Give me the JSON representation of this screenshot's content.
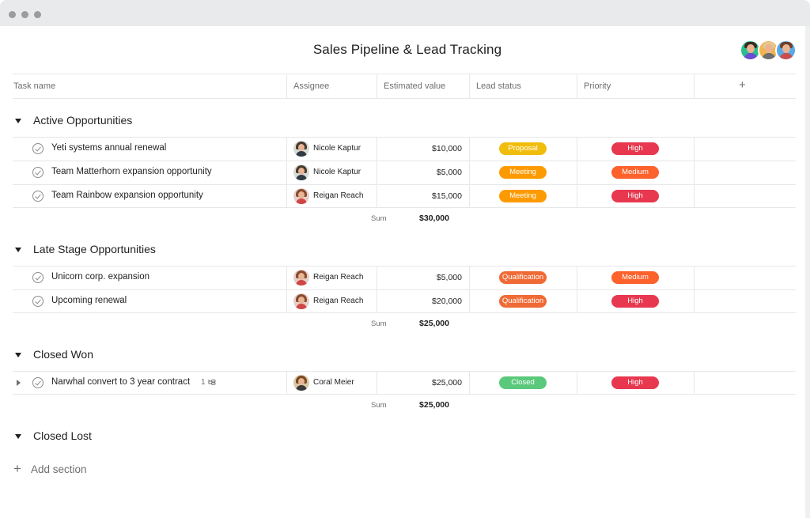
{
  "window": {
    "title": "Sales Pipeline & Lead Tracking"
  },
  "header": {
    "avatars": [
      {
        "name": "avatar-1",
        "bg": "#2bbd8f",
        "hair": "#3b2a20",
        "body": "#6c4dd1"
      },
      {
        "name": "avatar-2",
        "bg": "#f2b44b",
        "hair": "#e6c690",
        "body": "#6d6e6f"
      },
      {
        "name": "avatar-3",
        "bg": "#5aa8e6",
        "hair": "#6b3f26",
        "body": "#c94e4e"
      }
    ]
  },
  "columns": {
    "task_name": "Task name",
    "assignee": "Assignee",
    "estimated_value": "Estimated value",
    "lead_status": "Lead status",
    "priority": "Priority",
    "add": "+"
  },
  "colors": {
    "proposal": "#f1bd0c",
    "meeting": "#fd9a00",
    "qualification": "#f06a35",
    "closed": "#5ac97b",
    "high": "#e8384f",
    "medium": "#fd612c"
  },
  "sections": [
    {
      "label": "Active Opportunities",
      "rows": [
        {
          "task": "Yeti systems annual renewal",
          "assignee": "Nicole Kaptur",
          "value": "$10,000",
          "status": "Proposal",
          "status_color": "#f1bd0c",
          "priority": "High",
          "priority_color": "#e8384f"
        },
        {
          "task": "Team Matterhorn expansion opportunity",
          "assignee": "Nicole Kaptur",
          "value": "$5,000",
          "status": "Meeting",
          "status_color": "#fd9a00",
          "priority": "Medium",
          "priority_color": "#fd612c"
        },
        {
          "task": "Team Rainbow expansion opportunity",
          "assignee": "Reigan Reach",
          "value": "$15,000",
          "status": "Meeting",
          "status_color": "#fd9a00",
          "priority": "High",
          "priority_color": "#e8384f"
        }
      ],
      "sum_label": "Sum",
      "sum_value": "$30,000"
    },
    {
      "label": "Late Stage Opportunities",
      "rows": [
        {
          "task": "Unicorn corp. expansion",
          "assignee": "Reigan Reach",
          "value": "$5,000",
          "status": "Qualification",
          "status_color": "#f06a35",
          "priority": "Medium",
          "priority_color": "#fd612c"
        },
        {
          "task": "Upcoming renewal",
          "assignee": "Reigan Reach",
          "value": "$20,000",
          "status": "Qualification",
          "status_color": "#f06a35",
          "priority": "High",
          "priority_color": "#e8384f"
        }
      ],
      "sum_label": "Sum",
      "sum_value": "$25,000"
    },
    {
      "label": "Closed Won",
      "rows": [
        {
          "task": "Narwhal convert to 3 year contract",
          "subtasks": "1",
          "assignee": "Coral Meier",
          "value": "$25,000",
          "status": "Closed",
          "status_color": "#5ac97b",
          "priority": "High",
          "priority_color": "#e8384f"
        }
      ],
      "sum_label": "Sum",
      "sum_value": "$25,000"
    },
    {
      "label": "Closed Lost",
      "rows": []
    }
  ],
  "footer": {
    "add_section": "Add section",
    "add_icon": "+"
  }
}
